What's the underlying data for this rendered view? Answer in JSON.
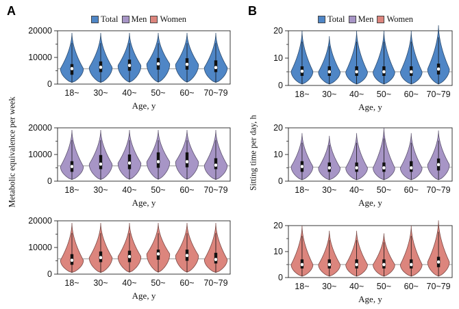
{
  "panels": [
    {
      "letter": "A",
      "ylabel": "Metabolic equivalence per week"
    },
    {
      "letter": "B",
      "ylabel": "Sitting time per day, h"
    }
  ],
  "legend": [
    {
      "label": "Total",
      "color": "#4f86c6"
    },
    {
      "label": "Men",
      "color": "#a795c6"
    },
    {
      "label": "Women",
      "color": "#dc857d"
    }
  ],
  "chart_data": [
    {
      "type": "violin",
      "panel": "A",
      "group": "Total",
      "color": "#4f86c6",
      "categories": [
        "18~",
        "30~",
        "40~",
        "50~",
        "60~",
        "70~79"
      ],
      "xlabel": "Age, y",
      "ylim": [
        0,
        20000
      ],
      "yticks": [
        0,
        10000,
        20000
      ],
      "y_minor_ticks": [
        5000,
        15000
      ],
      "reference_line": 5700,
      "series": [
        {
          "category": "18~",
          "median": 5800,
          "q1": 3500,
          "q3": 7500,
          "min": 600,
          "max": 19200
        },
        {
          "category": "30~",
          "median": 6300,
          "q1": 4500,
          "q3": 8500,
          "min": 600,
          "max": 19200
        },
        {
          "category": "40~",
          "median": 7000,
          "q1": 5000,
          "q3": 9200,
          "min": 700,
          "max": 19200
        },
        {
          "category": "50~",
          "median": 7600,
          "q1": 5400,
          "q3": 9800,
          "min": 700,
          "max": 19200
        },
        {
          "category": "60~",
          "median": 7400,
          "q1": 5400,
          "q3": 9700,
          "min": 700,
          "max": 19200
        },
        {
          "category": "70~79",
          "median": 6200,
          "q1": 4500,
          "q3": 8900,
          "min": 600,
          "max": 19200
        }
      ]
    },
    {
      "type": "violin",
      "panel": "A",
      "group": "Men",
      "color": "#a795c6",
      "categories": [
        "18~",
        "30~",
        "40~",
        "50~",
        "60~",
        "70~79"
      ],
      "xlabel": "Age, y",
      "ylim": [
        0,
        20000
      ],
      "yticks": [
        0,
        10000,
        20000
      ],
      "y_minor_ticks": [
        5000,
        15000
      ],
      "reference_line": 5700,
      "series": [
        {
          "category": "18~",
          "median": 5500,
          "q1": 3500,
          "q3": 7500,
          "min": 600,
          "max": 19200
        },
        {
          "category": "30~",
          "median": 6400,
          "q1": 4500,
          "q3": 9800,
          "min": 600,
          "max": 19200
        },
        {
          "category": "40~",
          "median": 6800,
          "q1": 4500,
          "q3": 10000,
          "min": 700,
          "max": 19200
        },
        {
          "category": "50~",
          "median": 7300,
          "q1": 5000,
          "q3": 10800,
          "min": 700,
          "max": 19200
        },
        {
          "category": "60~",
          "median": 7300,
          "q1": 5200,
          "q3": 10800,
          "min": 700,
          "max": 19200
        },
        {
          "category": "70~79",
          "median": 6000,
          "q1": 4500,
          "q3": 8600,
          "min": 600,
          "max": 19200
        }
      ]
    },
    {
      "type": "violin",
      "panel": "A",
      "group": "Women",
      "color": "#dc857d",
      "categories": [
        "18~",
        "30~",
        "40~",
        "50~",
        "60~",
        "70~79"
      ],
      "xlabel": "Age, y",
      "ylim": [
        0,
        20000
      ],
      "yticks": [
        0,
        10000,
        20000
      ],
      "y_minor_ticks": [
        5000,
        15000
      ],
      "reference_line": 5700,
      "series": [
        {
          "category": "18~",
          "median": 5200,
          "q1": 3500,
          "q3": 7500,
          "min": 600,
          "max": 19200
        },
        {
          "category": "30~",
          "median": 6200,
          "q1": 4500,
          "q3": 8500,
          "min": 600,
          "max": 19200
        },
        {
          "category": "40~",
          "median": 6600,
          "q1": 4500,
          "q3": 8800,
          "min": 700,
          "max": 19200
        },
        {
          "category": "50~",
          "median": 7600,
          "q1": 5400,
          "q3": 9200,
          "min": 700,
          "max": 19200
        },
        {
          "category": "60~",
          "median": 7000,
          "q1": 5000,
          "q3": 9200,
          "min": 700,
          "max": 19200
        },
        {
          "category": "70~79",
          "median": 5500,
          "q1": 4000,
          "q3": 8000,
          "min": 600,
          "max": 19200
        }
      ]
    },
    {
      "type": "violin",
      "panel": "B",
      "group": "Total",
      "color": "#4f86c6",
      "categories": [
        "18~",
        "30~",
        "40~",
        "50~",
        "60~",
        "70~79"
      ],
      "xlabel": "Age, y",
      "ylim": [
        0,
        20
      ],
      "yticks": [
        0,
        10,
        20
      ],
      "y_minor_ticks": [
        5,
        15
      ],
      "reference_line": 5,
      "series": [
        {
          "category": "18~",
          "median": 5.2,
          "q1": 3.5,
          "q3": 7,
          "min": 0.5,
          "max": 20
        },
        {
          "category": "30~",
          "median": 5,
          "q1": 3.5,
          "q3": 7,
          "min": 0.5,
          "max": 18
        },
        {
          "category": "40~",
          "median": 5,
          "q1": 3.5,
          "q3": 7,
          "min": 0.5,
          "max": 20
        },
        {
          "category": "50~",
          "median": 5,
          "q1": 3.5,
          "q3": 7,
          "min": 0.5,
          "max": 20
        },
        {
          "category": "60~",
          "median": 5,
          "q1": 3.5,
          "q3": 7,
          "min": 0.5,
          "max": 20
        },
        {
          "category": "70~79",
          "median": 6,
          "q1": 4,
          "q3": 8,
          "min": 0.5,
          "max": 22
        }
      ]
    },
    {
      "type": "violin",
      "panel": "B",
      "group": "Men",
      "color": "#a795c6",
      "categories": [
        "18~",
        "30~",
        "40~",
        "50~",
        "60~",
        "70~79"
      ],
      "xlabel": "Age, y",
      "ylim": [
        0,
        20
      ],
      "yticks": [
        0,
        10,
        20
      ],
      "y_minor_ticks": [
        5,
        15
      ],
      "reference_line": 5.3,
      "series": [
        {
          "category": "18~",
          "median": 5.5,
          "q1": 3.5,
          "q3": 7.5,
          "min": 0.5,
          "max": 18
        },
        {
          "category": "30~",
          "median": 5,
          "q1": 3.5,
          "q3": 7,
          "min": 0.5,
          "max": 17
        },
        {
          "category": "40~",
          "median": 5,
          "q1": 3.5,
          "q3": 7,
          "min": 0.5,
          "max": 18
        },
        {
          "category": "50~",
          "median": 5,
          "q1": 3.5,
          "q3": 7,
          "min": 0.5,
          "max": 20
        },
        {
          "category": "60~",
          "median": 5,
          "q1": 3.5,
          "q3": 7.5,
          "min": 0.5,
          "max": 18
        },
        {
          "category": "70~79",
          "median": 6.2,
          "q1": 4,
          "q3": 8.5,
          "min": 0.5,
          "max": 19
        }
      ]
    },
    {
      "type": "violin",
      "panel": "B",
      "group": "Women",
      "color": "#dc857d",
      "categories": [
        "18~",
        "30~",
        "40~",
        "50~",
        "60~",
        "70~79"
      ],
      "xlabel": "Age, y",
      "ylim": [
        0,
        20
      ],
      "yticks": [
        0,
        10,
        20
      ],
      "y_minor_ticks": [
        5,
        15
      ],
      "reference_line": 5,
      "series": [
        {
          "category": "18~",
          "median": 5,
          "q1": 3.5,
          "q3": 7,
          "min": 0.5,
          "max": 20
        },
        {
          "category": "30~",
          "median": 5,
          "q1": 3.5,
          "q3": 7,
          "min": 0.5,
          "max": 18
        },
        {
          "category": "40~",
          "median": 5,
          "q1": 3.5,
          "q3": 7,
          "min": 0.5,
          "max": 18
        },
        {
          "category": "50~",
          "median": 5,
          "q1": 3.5,
          "q3": 7,
          "min": 0.5,
          "max": 17
        },
        {
          "category": "60~",
          "median": 5,
          "q1": 3.5,
          "q3": 7,
          "min": 0.5,
          "max": 20
        },
        {
          "category": "70~79",
          "median": 6,
          "q1": 4,
          "q3": 8,
          "min": 0.5,
          "max": 22
        }
      ]
    }
  ]
}
